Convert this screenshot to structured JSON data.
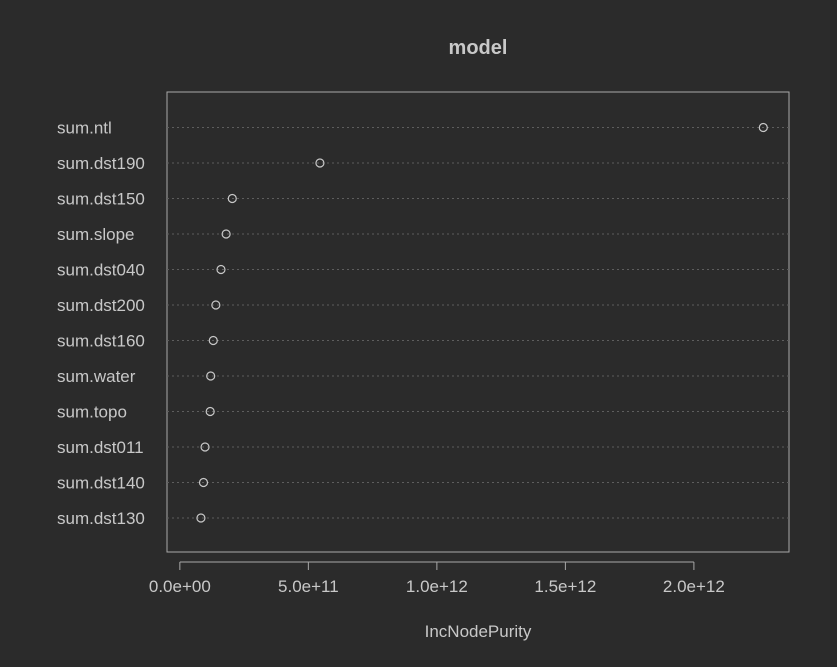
{
  "chart_data": {
    "type": "scatter",
    "title": "model",
    "xlabel": "IncNodePurity",
    "ylabel": "",
    "xlim": [
      -50000000000.0,
      2370000000000.0
    ],
    "xticks": [
      0,
      500000000000.0,
      1000000000000.0,
      1500000000000.0,
      2000000000000.0
    ],
    "xtick_labels": [
      "0.0e+00",
      "5.0e+11",
      "1.0e+12",
      "1.5e+12",
      "2.0e+12"
    ],
    "grid": "horizontal dotted",
    "categories": [
      "sum.ntl",
      "sum.dst190",
      "sum.dst150",
      "sum.slope",
      "sum.dst040",
      "sum.dst200",
      "sum.dst160",
      "sum.water",
      "sum.topo",
      "sum.dst011",
      "sum.dst140",
      "sum.dst130"
    ],
    "values": [
      2270000000000.0,
      545000000000.0,
      204000000000.0,
      180000000000.0,
      160000000000.0,
      140000000000.0,
      130000000000.0,
      120000000000.0,
      118000000000.0,
      98000000000.0,
      92000000000.0,
      82000000000.0
    ]
  }
}
